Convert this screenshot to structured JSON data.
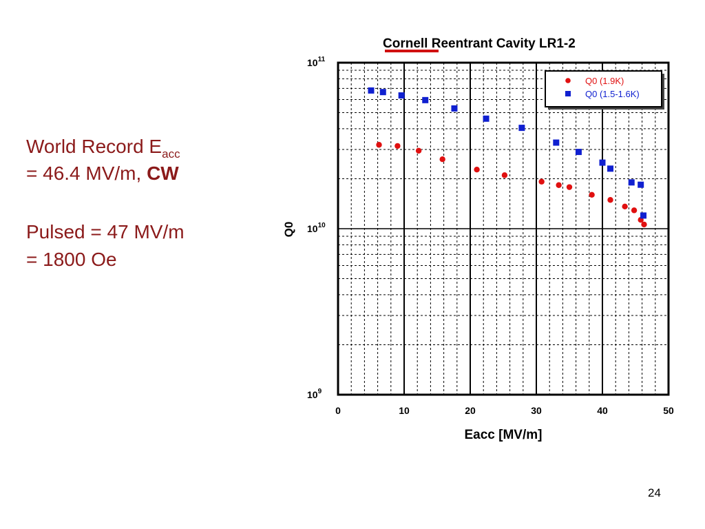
{
  "slide": {
    "page_number": "24",
    "record_line1_prefix": "World Record E",
    "record_line1_subscript": "acc",
    "record_line2_prefix": "= 46.4 MV/m, ",
    "record_line2_bold": "CW",
    "pulsed_line1": "Pulsed = 47 MV/m",
    "pulsed_line2": "= 1800 Oe"
  },
  "colors": {
    "slide_text": "#8b1a1a",
    "series_1": "#e01010",
    "series_2": "#1020d0",
    "title_underline": "#d01010"
  },
  "chart_data": {
    "type": "scatter",
    "title_part1": "Cornell",
    "title_part2": " Reentrant Cavity LR1-2",
    "xlabel": "Eacc [MV/m]",
    "ylabel": "Q0",
    "xlim": [
      0,
      50
    ],
    "ylim": [
      1000000000.0,
      100000000000.0
    ],
    "y_scale": "log",
    "x_ticks": [
      "0",
      "10",
      "20",
      "30",
      "40",
      "50"
    ],
    "y_ticks": [
      {
        "base": "10",
        "exp": "9",
        "value": 1000000000.0
      },
      {
        "base": "10",
        "exp": "10",
        "value": 10000000000.0
      },
      {
        "base": "10",
        "exp": "11",
        "value": 100000000000.0
      }
    ],
    "grid": true,
    "legend_position": "top-right",
    "series": [
      {
        "name": "Q0 (1.9K)",
        "marker": "circle",
        "color": "#e01010",
        "points": [
          [
            6.2,
            32000000000.0
          ],
          [
            9.0,
            31500000000.0
          ],
          [
            12.2,
            29500000000.0
          ],
          [
            15.8,
            26200000000.0
          ],
          [
            21.0,
            22700000000.0
          ],
          [
            25.2,
            21000000000.0
          ],
          [
            30.8,
            19200000000.0
          ],
          [
            33.4,
            18300000000.0
          ],
          [
            35.0,
            17800000000.0
          ],
          [
            38.4,
            16000000000.0
          ],
          [
            41.2,
            14900000000.0
          ],
          [
            43.4,
            13600000000.0
          ],
          [
            44.8,
            12900000000.0
          ],
          [
            45.8,
            11300000000.0
          ],
          [
            46.3,
            10600000000.0
          ]
        ]
      },
      {
        "name": "Q0 (1.5-1.6K)",
        "marker": "square",
        "color": "#1020d0",
        "points": [
          [
            5.0,
            68000000000.0
          ],
          [
            6.8,
            66500000000.0
          ],
          [
            9.6,
            63500000000.0
          ],
          [
            13.2,
            59500000000.0
          ],
          [
            17.6,
            53000000000.0
          ],
          [
            22.4,
            46000000000.0
          ],
          [
            27.8,
            40500000000.0
          ],
          [
            33.0,
            33000000000.0
          ],
          [
            36.4,
            29000000000.0
          ],
          [
            40.0,
            25000000000.0
          ],
          [
            41.2,
            23000000000.0
          ],
          [
            44.4,
            19000000000.0
          ],
          [
            45.8,
            18400000000.0
          ],
          [
            46.2,
            12000000000.0
          ]
        ]
      }
    ]
  }
}
